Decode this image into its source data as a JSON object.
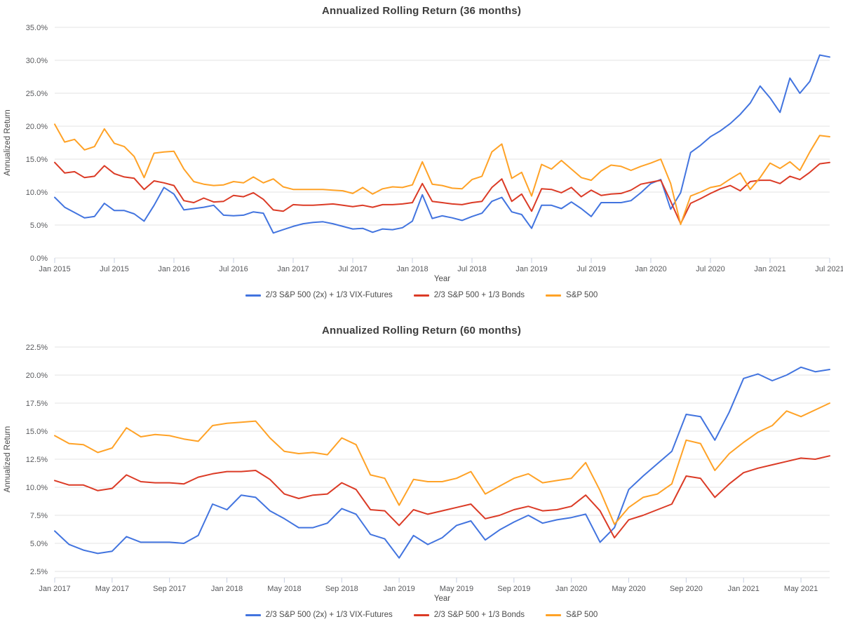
{
  "page": {
    "background": "#ffffff"
  },
  "colors": {
    "blue": "#4274DF",
    "red": "#DB3B26",
    "orange": "#FFA226",
    "gridline": "#e3e3e3",
    "tick_mark": "#c6cfe2",
    "title_text": "#3d3d3d",
    "axis_text": "#58595c"
  },
  "chart_data": [
    {
      "type": "line",
      "title": "Annualized Rolling Return (36 months)",
      "xlabel": "Year",
      "ylabel": "Annualized Return",
      "ylim": [
        0,
        35
      ],
      "yticks": [
        0,
        5,
        10,
        15,
        20,
        25,
        30,
        35
      ],
      "ytick_labels": [
        "0.0%",
        "5.0%",
        "10.0%",
        "15.0%",
        "20.0%",
        "25.0%",
        "30.0%",
        "35.0%"
      ],
      "grid": true,
      "legend_position": "bottom",
      "x_start": "Jan 2015",
      "x_end": "Jul 2021",
      "n_points": 79,
      "xtick_indices": [
        0,
        6,
        12,
        18,
        24,
        30,
        36,
        42,
        48,
        54,
        60,
        66,
        72,
        78
      ],
      "xtick_labels": [
        "Jan 2015",
        "Jul 2015",
        "Jan 2016",
        "Jul 2016",
        "Jan 2017",
        "Jul 2017",
        "Jan 2018",
        "Jul 2018",
        "Jan 2019",
        "Jul 2019",
        "Jan 2020",
        "Jul 2020",
        "Jan 2021",
        "Jul 2021"
      ],
      "series": [
        {
          "name": "2/3 S&P 500 (2x) + 1/3 VIX-Futures",
          "color_key": "blue",
          "values": [
            9.2,
            7.7,
            6.9,
            6.1,
            6.3,
            8.3,
            7.2,
            7.2,
            6.7,
            5.6,
            8.0,
            10.7,
            9.7,
            7.3,
            7.5,
            7.7,
            8.0,
            6.5,
            6.4,
            6.5,
            7.0,
            6.8,
            3.8,
            4.3,
            4.8,
            5.2,
            5.4,
            5.5,
            5.2,
            4.8,
            4.4,
            4.5,
            3.9,
            4.4,
            4.3,
            4.6,
            5.6,
            9.6,
            6.0,
            6.4,
            6.1,
            5.7,
            6.3,
            6.8,
            8.6,
            9.2,
            7.0,
            6.6,
            4.5,
            8.0,
            8.0,
            7.5,
            8.5,
            7.5,
            6.3,
            8.4,
            8.4,
            8.4,
            8.7,
            9.9,
            11.3,
            11.9,
            7.4,
            9.9,
            16.0,
            17.1,
            18.4,
            19.3,
            20.4,
            21.8,
            23.5,
            26.1,
            24.3,
            22.1,
            27.3,
            25.0,
            26.8,
            30.8,
            30.5
          ]
        },
        {
          "name": "2/3 S&P 500 + 1/3 Bonds",
          "color_key": "red",
          "values": [
            14.5,
            12.9,
            13.1,
            12.2,
            12.4,
            14.0,
            12.8,
            12.3,
            12.1,
            10.4,
            11.7,
            11.4,
            11.0,
            8.7,
            8.4,
            9.1,
            8.5,
            8.6,
            9.5,
            9.3,
            9.9,
            8.9,
            7.3,
            7.1,
            8.1,
            8.0,
            8.0,
            8.1,
            8.2,
            8.0,
            7.8,
            8.0,
            7.7,
            8.1,
            8.1,
            8.2,
            8.4,
            11.3,
            8.6,
            8.4,
            8.2,
            8.1,
            8.4,
            8.6,
            10.7,
            12.0,
            8.6,
            9.7,
            7.1,
            10.5,
            10.4,
            9.9,
            10.7,
            9.3,
            10.3,
            9.5,
            9.7,
            9.8,
            10.3,
            11.2,
            11.5,
            11.8,
            8.6,
            5.2,
            8.3,
            9.0,
            9.8,
            10.5,
            11.0,
            10.2,
            11.6,
            11.8,
            11.8,
            11.3,
            12.4,
            11.9,
            13.0,
            14.3,
            14.5
          ]
        },
        {
          "name": "S&P 500",
          "color_key": "orange",
          "values": [
            20.3,
            17.6,
            18.0,
            16.4,
            16.9,
            19.6,
            17.4,
            16.9,
            15.4,
            12.2,
            15.9,
            16.1,
            16.2,
            13.5,
            11.6,
            11.2,
            11.0,
            11.1,
            11.6,
            11.4,
            12.3,
            11.4,
            12.0,
            10.8,
            10.4,
            10.4,
            10.4,
            10.4,
            10.3,
            10.2,
            9.8,
            10.7,
            9.7,
            10.5,
            10.8,
            10.7,
            11.1,
            14.6,
            11.2,
            11.0,
            10.6,
            10.5,
            11.9,
            12.4,
            16.1,
            17.3,
            12.1,
            13.0,
            9.4,
            14.2,
            13.5,
            14.8,
            13.5,
            12.2,
            11.8,
            13.2,
            14.1,
            13.9,
            13.3,
            13.9,
            14.4,
            15.0,
            11.3,
            5.1,
            9.4,
            10.0,
            10.7,
            11.0,
            12.0,
            12.9,
            10.4,
            12.2,
            14.4,
            13.6,
            14.6,
            13.3,
            16.1,
            18.6,
            18.4
          ]
        }
      ]
    },
    {
      "type": "line",
      "title": "Annualized Rolling Return (60 months)",
      "xlabel": "Year",
      "ylabel": "Annualized Return",
      "ylim": [
        2.5,
        22.5
      ],
      "yticks": [
        2.5,
        5,
        7.5,
        10,
        12.5,
        15,
        17.5,
        20,
        22.5
      ],
      "ytick_labels": [
        "2.5%",
        "5.0%",
        "7.5%",
        "10.0%",
        "12.5%",
        "15.0%",
        "17.5%",
        "20.0%",
        "22.5%"
      ],
      "grid": true,
      "legend_position": "bottom",
      "x_start": "Jan 2017",
      "x_end": "Jul 2021",
      "n_points": 55,
      "xtick_indices": [
        0,
        4,
        8,
        12,
        16,
        20,
        24,
        28,
        32,
        36,
        40,
        44,
        48,
        52
      ],
      "xtick_labels": [
        "Jan 2017",
        "May 2017",
        "Sep 2017",
        "Jan 2018",
        "May 2018",
        "Sep 2018",
        "Jan 2019",
        "May 2019",
        "Sep 2019",
        "Jan 2020",
        "May 2020",
        "Sep 2020",
        "Jan 2021",
        "May 2021"
      ],
      "series": [
        {
          "name": "2/3 S&P 500 (2x) + 1/3 VIX-Futures",
          "color_key": "blue",
          "values": [
            6.1,
            4.9,
            4.4,
            4.1,
            4.3,
            5.6,
            5.1,
            5.1,
            5.1,
            5.0,
            5.7,
            8.5,
            8.0,
            9.3,
            9.1,
            7.9,
            7.2,
            6.4,
            6.4,
            6.8,
            8.1,
            7.6,
            5.8,
            5.4,
            3.7,
            5.7,
            4.9,
            5.5,
            6.6,
            7.0,
            5.3,
            6.2,
            6.9,
            7.5,
            6.8,
            7.1,
            7.3,
            7.6,
            5.1,
            6.4,
            9.8,
            11.0,
            12.1,
            13.2,
            16.5,
            16.3,
            14.2,
            16.7,
            19.7,
            20.1,
            19.5,
            20.0,
            20.7,
            20.3,
            20.5
          ]
        },
        {
          "name": "2/3 S&P 500 + 1/3 Bonds",
          "color_key": "red",
          "values": [
            10.6,
            10.2,
            10.2,
            9.7,
            9.9,
            11.1,
            10.5,
            10.4,
            10.4,
            10.3,
            10.9,
            11.2,
            11.4,
            11.4,
            11.5,
            10.7,
            9.4,
            9.0,
            9.3,
            9.4,
            10.4,
            9.8,
            8.0,
            7.9,
            6.6,
            8.0,
            7.6,
            7.9,
            8.2,
            8.5,
            7.2,
            7.5,
            8.0,
            8.3,
            7.9,
            8.0,
            8.3,
            9.3,
            7.9,
            5.5,
            7.1,
            7.5,
            8.0,
            8.5,
            11.0,
            10.8,
            9.1,
            10.3,
            11.3,
            11.7,
            12.0,
            12.3,
            12.6,
            12.5,
            12.8
          ]
        },
        {
          "name": "S&P 500",
          "color_key": "orange",
          "values": [
            14.6,
            13.9,
            13.8,
            13.1,
            13.5,
            15.3,
            14.5,
            14.7,
            14.6,
            14.3,
            14.1,
            15.5,
            15.7,
            15.8,
            15.9,
            14.4,
            13.2,
            13.0,
            13.1,
            12.9,
            14.4,
            13.8,
            11.1,
            10.8,
            8.4,
            10.7,
            10.5,
            10.5,
            10.8,
            11.4,
            9.4,
            10.1,
            10.8,
            11.2,
            10.4,
            10.6,
            10.8,
            12.2,
            9.7,
            6.7,
            8.2,
            9.1,
            9.4,
            10.3,
            14.2,
            13.9,
            11.5,
            13.0,
            14.0,
            14.9,
            15.5,
            16.8,
            16.3,
            16.9,
            17.5
          ]
        }
      ]
    }
  ]
}
